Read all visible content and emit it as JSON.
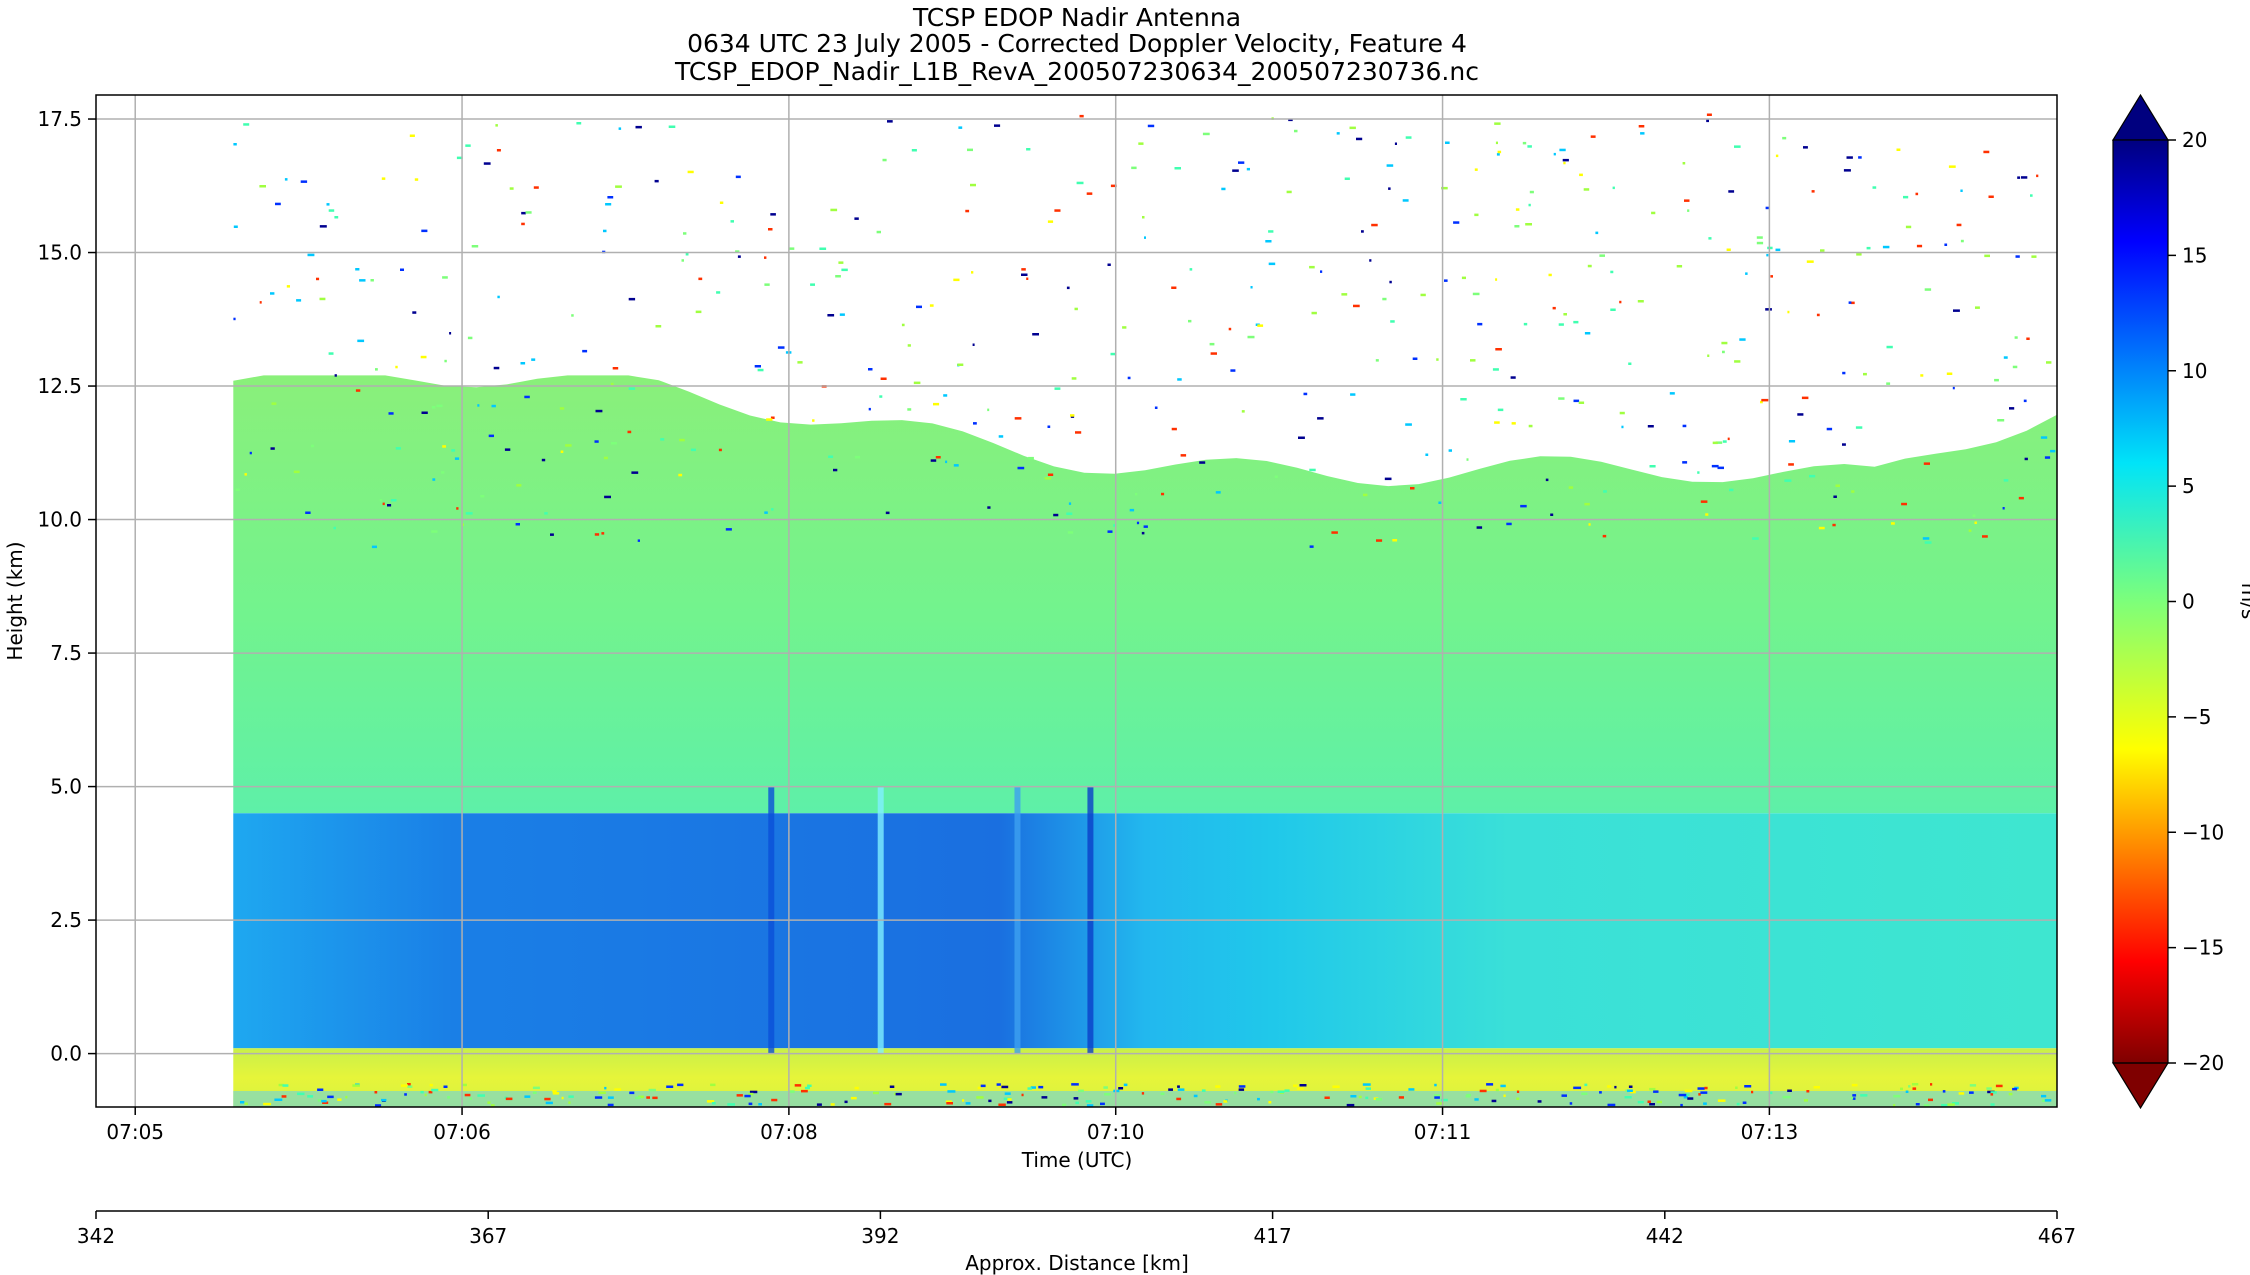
{
  "chart_data": {
    "type": "heatmap",
    "title_lines": [
      "TCSP EDOP Nadir Antenna",
      "0634 UTC 23 July 2005 - Corrected Doppler Velocity, Feature 4",
      "TCSP_EDOP_Nadir_L1B_RevA_200507230634_200507230736.nc"
    ],
    "xlabel": "Time (UTC)",
    "ylabel": "Height (km)",
    "secondary_xlabel": "Approx. Distance [km]",
    "colorbar_label": "m/s",
    "x_ticks": [
      "07:05",
      "07:06",
      "07:08",
      "07:10",
      "07:11",
      "07:13"
    ],
    "x_tick_values": [
      0,
      1,
      2,
      3,
      4,
      5
    ],
    "x_range": [
      -0.12,
      5.88
    ],
    "y_ticks": [
      "0.0",
      "2.5",
      "5.0",
      "7.5",
      "10.0",
      "12.5",
      "15.0",
      "17.5"
    ],
    "y_tick_values": [
      0,
      2.5,
      5,
      7.5,
      10,
      12.5,
      15,
      17.5
    ],
    "ylim": [
      -1.0,
      17.95
    ],
    "secondary_x_ticks": [
      "342",
      "367",
      "392",
      "417",
      "442",
      "467"
    ],
    "secondary_x_tick_values": [
      342,
      367,
      392,
      417,
      442,
      467
    ],
    "secondary_x_range": [
      342,
      467
    ],
    "colorbar_ticks": [
      "−20",
      "−15",
      "−10",
      "−5",
      "0",
      "5",
      "10",
      "15",
      "20"
    ],
    "colorbar_tick_values": [
      -20,
      -15,
      -10,
      -5,
      0,
      5,
      10,
      15,
      20
    ],
    "colorbar_range": [
      -20,
      20
    ],
    "colormap": "jet_r",
    "grid": true,
    "data_start_x": 0.3,
    "regions": [
      {
        "name": "surface-and-below",
        "y": [
          -1.0,
          0.0
        ],
        "velocity": -5
      },
      {
        "name": "lower-layer",
        "y": [
          0.1,
          4.5
        ],
        "velocity": 6
      },
      {
        "name": "upper-layer",
        "y": [
          4.5,
          10.5
        ],
        "velocity": 1
      }
    ]
  }
}
